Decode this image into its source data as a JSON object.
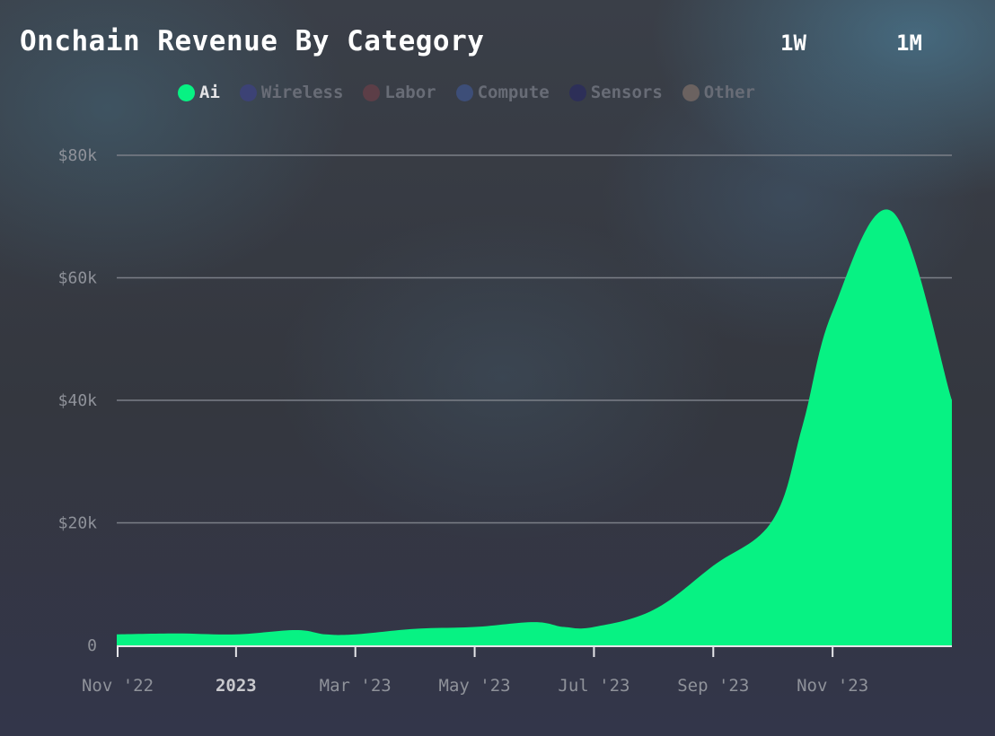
{
  "header": {
    "title": "Onchain Revenue By Category",
    "ranges": [
      "1W",
      "1M"
    ]
  },
  "legend": {
    "items": [
      {
        "label": "Ai",
        "color": "#07f283",
        "active": true
      },
      {
        "label": "Wireless",
        "color": "#3c4275",
        "active": false
      },
      {
        "label": "Labor",
        "color": "#5c3e47",
        "active": false
      },
      {
        "label": "Compute",
        "color": "#3d4e78",
        "active": false
      },
      {
        "label": "Sensors",
        "color": "#2d2f58",
        "active": false
      },
      {
        "label": "Other",
        "color": "#6b6260",
        "active": false
      }
    ]
  },
  "chart_data": {
    "type": "area",
    "title": "Onchain Revenue By Category",
    "xlabel": "",
    "ylabel": "",
    "ylim": [
      0,
      80000
    ],
    "grid": true,
    "legend_position": "top",
    "x_ticks": [
      {
        "label": "Nov '22",
        "x": 0,
        "bold": false
      },
      {
        "label": "2023",
        "x": 2,
        "bold": true
      },
      {
        "label": "Mar '23",
        "x": 4,
        "bold": false
      },
      {
        "label": "May '23",
        "x": 6,
        "bold": false
      },
      {
        "label": "Jul '23",
        "x": 8,
        "bold": false
      },
      {
        "label": "Sep '23",
        "x": 10,
        "bold": false
      },
      {
        "label": "Nov '23",
        "x": 12,
        "bold": false
      }
    ],
    "y_ticks": [
      {
        "label": "0",
        "value": 0
      },
      {
        "label": "$20k",
        "value": 20000
      },
      {
        "label": "$40k",
        "value": 40000
      },
      {
        "label": "$60k",
        "value": 60000
      },
      {
        "label": "$80k",
        "value": 80000
      }
    ],
    "xlim": [
      0,
      14
    ],
    "series": [
      {
        "name": "Ai",
        "color": "#07f283",
        "points": [
          [
            0,
            1800
          ],
          [
            1,
            1950
          ],
          [
            2,
            1800
          ],
          [
            3,
            2500
          ],
          [
            3.5,
            1800
          ],
          [
            4,
            1800
          ],
          [
            5,
            2700
          ],
          [
            6,
            3000
          ],
          [
            7,
            3800
          ],
          [
            7.5,
            3000
          ],
          [
            8,
            3000
          ],
          [
            9,
            5800
          ],
          [
            10,
            13000
          ],
          [
            11,
            20500
          ],
          [
            11.5,
            36000
          ],
          [
            12,
            54500
          ],
          [
            13,
            70800
          ],
          [
            14,
            40000
          ]
        ]
      }
    ]
  }
}
